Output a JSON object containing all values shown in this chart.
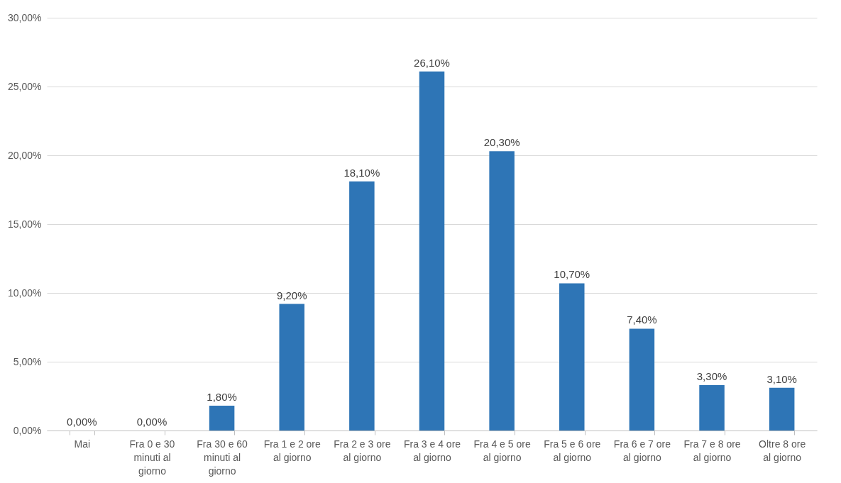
{
  "chart_data": {
    "type": "bar",
    "categories": [
      "Mai",
      "Fra 0 e 30 minuti al giorno",
      "Fra 30 e 60 minuti al giorno",
      "Fra 1 e 2 ore al giorno",
      "Fra 2 e 3 ore al giorno",
      "Fra 3 e 4 ore al giorno",
      "Fra 4 e 5 ore al giorno",
      "Fra 5 e 6 ore al giorno",
      "Fra 6 e 7 ore al giorno",
      "Fra 7 e 8 ore al giorno",
      "Oltre 8 ore al giorno"
    ],
    "values": [
      0,
      0,
      1.8,
      9.2,
      18.1,
      26.1,
      20.3,
      10.7,
      7.4,
      3.3,
      3.1
    ],
    "value_labels": [
      "0,00%",
      "0,00%",
      "1,80%",
      "9,20%",
      "18,10%",
      "26,10%",
      "20,30%",
      "10,70%",
      "7,40%",
      "3,30%",
      "3,10%"
    ],
    "color": "#2e75b6",
    "ylim": [
      0,
      30
    ],
    "yticks": [
      {
        "value": 0,
        "label": "0,00%"
      },
      {
        "value": 5,
        "label": "5,00%"
      },
      {
        "value": 10,
        "label": "10,00%"
      },
      {
        "value": 15,
        "label": "15,00%"
      },
      {
        "value": 20,
        "label": "20,00%"
      },
      {
        "value": 25,
        "label": "25,00%"
      },
      {
        "value": 30,
        "label": "30,00%"
      }
    ],
    "grid": "y"
  }
}
